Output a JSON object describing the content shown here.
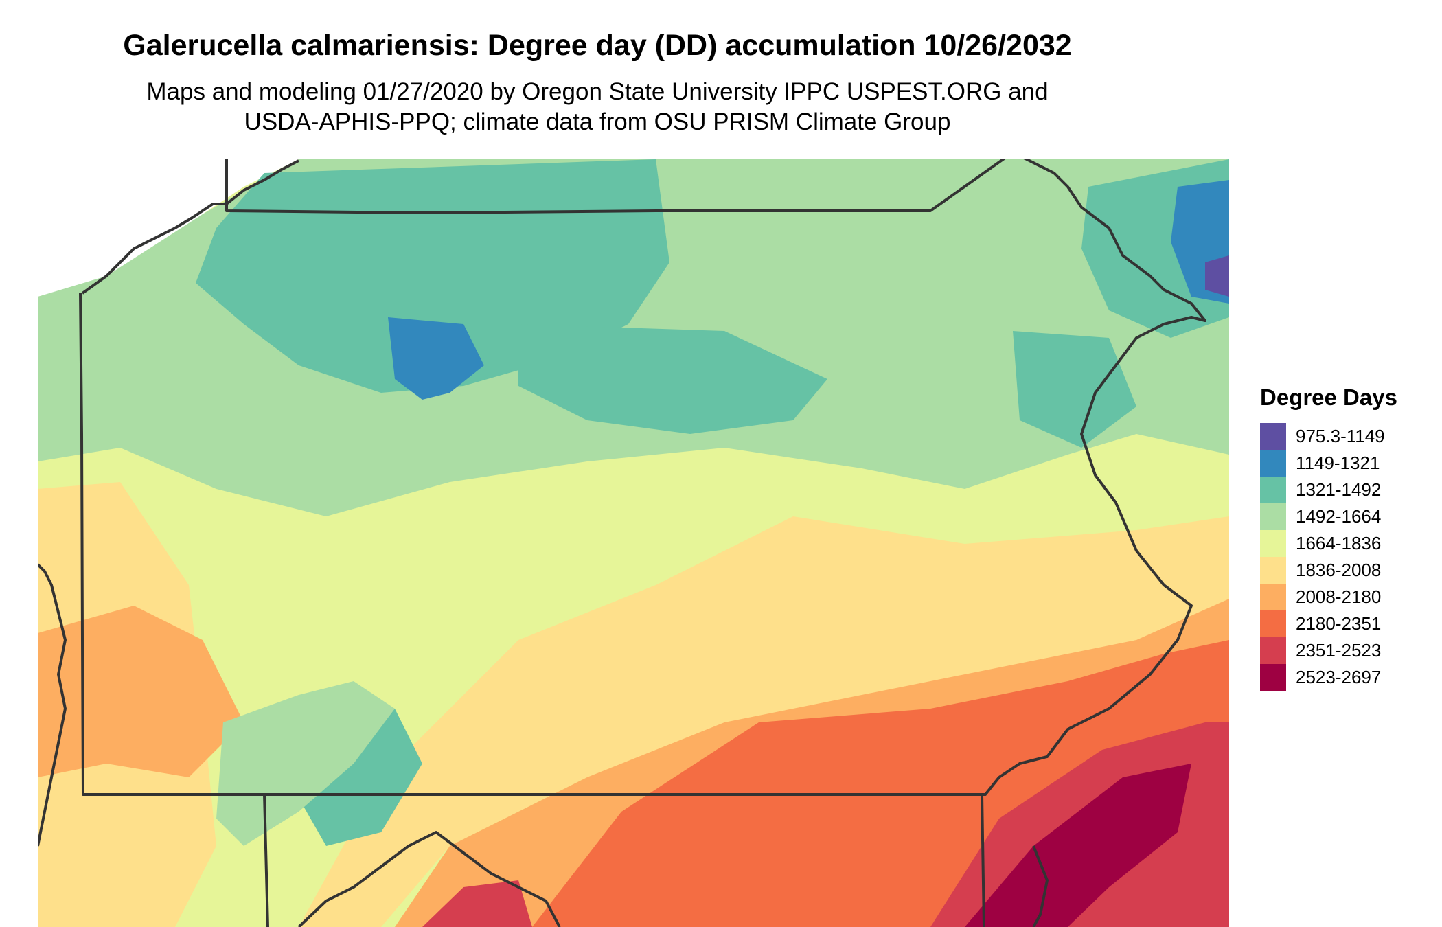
{
  "title": "Galerucella calmariensis: Degree day (DD) accumulation 10/26/2032",
  "subtitle_lines": [
    "Maps and modeling 01/27/2020 by Oregon State University IPPC USPEST.ORG and",
    "USDA-APHIS-PPQ; climate data from OSU PRISM Climate Group"
  ],
  "legend": {
    "title": "Degree Days",
    "items": [
      {
        "label": "975.3-1149",
        "color": "#5e4fa2"
      },
      {
        "label": "1149-1321",
        "color": "#3288bd"
      },
      {
        "label": "1321-1492",
        "color": "#66c2a5"
      },
      {
        "label": "1492-1664",
        "color": "#abdda4"
      },
      {
        "label": "1664-1836",
        "color": "#e6f598"
      },
      {
        "label": "1836-2008",
        "color": "#fee08b"
      },
      {
        "label": "2008-2180",
        "color": "#fdae61"
      },
      {
        "label": "2180-2351",
        "color": "#f46d43"
      },
      {
        "label": "2351-2523",
        "color": "#d53e4f"
      },
      {
        "label": "2523-2697",
        "color": "#9e0142"
      }
    ]
  }
}
